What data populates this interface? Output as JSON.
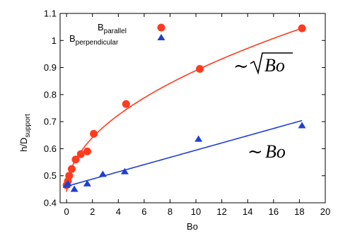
{
  "chart_data": {
    "type": "scatter",
    "xlabel": "Bo",
    "ylabel_base": "h/D",
    "ylabel_sub": "support",
    "xlim": [
      -0.5,
      20
    ],
    "ylim": [
      0.4,
      1.1
    ],
    "xticks": [
      "0",
      "2",
      "4",
      "6",
      "8",
      "10",
      "12",
      "14",
      "16",
      "18",
      "20"
    ],
    "yticks": [
      "0.4",
      "0.5",
      "0.6",
      "0.7",
      "0.8",
      "0.9",
      "1",
      "1.1"
    ],
    "grid": false,
    "legend_position": "top-left",
    "series": [
      {
        "name_base": "B",
        "name_sub": "parallel",
        "marker": "circle",
        "color": "#ff3b1f",
        "x": [
          0.0,
          0.1,
          0.2,
          0.4,
          0.7,
          1.1,
          1.6,
          2.1,
          4.6,
          10.3,
          18.2
        ],
        "y": [
          0.465,
          0.48,
          0.5,
          0.525,
          0.56,
          0.58,
          0.59,
          0.655,
          0.765,
          0.895,
          1.045
        ],
        "fit": {
          "type": "sqrt",
          "color": "#ff3b1f",
          "x_range": [
            0,
            18.2
          ]
        }
      },
      {
        "name_base": "B",
        "name_sub": "perpendicular",
        "marker": "triangle",
        "color": "#1f3fd0",
        "x": [
          0.0,
          0.1,
          0.6,
          1.6,
          2.8,
          4.5,
          10.2,
          18.2
        ],
        "y": [
          0.465,
          0.47,
          0.45,
          0.47,
          0.505,
          0.515,
          0.635,
          0.685
        ],
        "fit": {
          "type": "linear",
          "color": "#1f3fd0",
          "x_range": [
            0,
            18.2
          ]
        }
      }
    ],
    "annotations": [
      {
        "tilde": "~",
        "text": "Bo",
        "sqrt": true,
        "near_series": 0
      },
      {
        "tilde": "~",
        "text": "Bo",
        "sqrt": false,
        "near_series": 1
      }
    ]
  }
}
